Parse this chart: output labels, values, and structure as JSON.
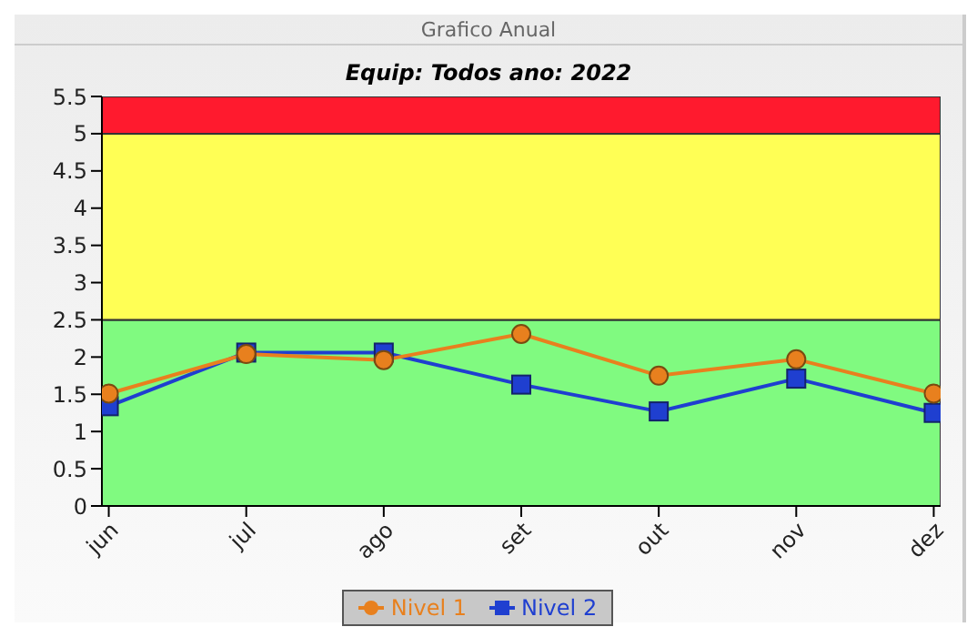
{
  "chart_data": {
    "type": "line",
    "title": "Equip: Todos ano: 2022",
    "annotations": [
      "Grafico Anual"
    ],
    "categories": [
      "jun",
      "jul",
      "ago",
      "set",
      "out",
      "nov",
      "dez"
    ],
    "series": [
      {
        "name": "Nivel 1",
        "color": "#e8801e",
        "marker": "circle",
        "values": [
          1.51,
          2.04,
          1.96,
          2.31,
          1.75,
          1.97,
          1.51
        ]
      },
      {
        "name": "Nivel 2",
        "color": "#1f3fd0",
        "marker": "square",
        "values": [
          1.34,
          2.06,
          2.06,
          1.63,
          1.27,
          1.71,
          1.25
        ]
      }
    ],
    "bands": [
      {
        "axis": "y",
        "from": 0,
        "to": 2.5,
        "color": "#80fa80"
      },
      {
        "axis": "y",
        "from": 2.5,
        "to": 5,
        "color": "#ffff55"
      },
      {
        "axis": "y",
        "from": 5,
        "to": 5.5,
        "color": "#ff1a2e"
      }
    ],
    "ylim": [
      0,
      5.5
    ],
    "yticks": [
      0,
      0.5,
      1,
      1.5,
      2,
      2.5,
      3,
      3.5,
      4,
      4.5,
      5,
      5.5
    ],
    "grid": false,
    "legend": "bottom"
  }
}
